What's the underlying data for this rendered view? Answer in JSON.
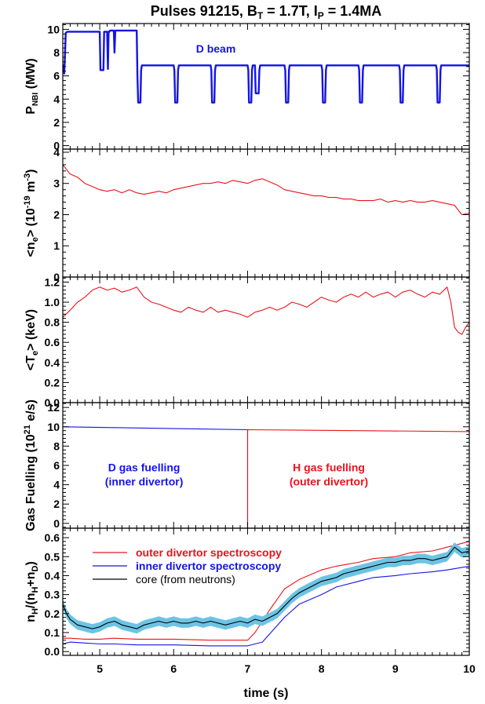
{
  "title": {
    "t1": "Pulses 91215, B",
    "t2": "T",
    "t3": " = 1.7T, I",
    "t4": "P",
    "t5": " = 1.4MA"
  },
  "xaxis": {
    "label": "time (s)",
    "ticks": [
      "5",
      "6",
      "7",
      "8",
      "9",
      "10"
    ]
  },
  "colors": {
    "red": "#e8141b",
    "blue": "#1414e6",
    "black": "#000000",
    "band": "#6cc4e4"
  },
  "chart_data": [
    {
      "type": "line",
      "ylabel": {
        "a": "P",
        "b": "NBI",
        "c": " (MW)"
      },
      "xlim": [
        4.5,
        10
      ],
      "ylim": [
        -0.3,
        10.5
      ],
      "yticks": [
        "0",
        "2",
        "4",
        "6",
        "8",
        "10"
      ],
      "annotation": "D beam",
      "series": [
        {
          "name": "D beam",
          "color": "blue",
          "x": [
            4.5,
            4.52,
            4.54,
            4.56,
            5.0,
            5.01,
            5.03,
            5.05,
            5.06,
            5.1,
            5.11,
            5.12,
            5.13,
            5.14,
            5.19,
            5.2,
            5.21,
            5.5,
            5.51,
            5.52,
            5.55,
            5.56,
            5.57,
            5.6,
            5.61,
            6.0,
            6.01,
            6.02,
            6.05,
            6.06,
            6.07,
            6.5,
            6.51,
            6.52,
            6.55,
            6.56,
            6.57,
            7.0,
            7.01,
            7.02,
            7.05,
            7.06,
            7.07,
            7.1,
            7.11,
            7.12,
            7.15,
            7.16,
            7.17,
            7.5,
            7.51,
            7.52,
            7.55,
            7.56,
            7.57,
            8.0,
            8.01,
            8.02,
            8.05,
            8.06,
            8.07,
            8.5,
            8.51,
            8.52,
            8.55,
            8.56,
            8.57,
            9.05,
            9.06,
            9.07,
            9.1,
            9.11,
            9.12,
            9.55,
            9.56,
            9.57,
            9.6,
            9.61,
            9.62,
            10.0
          ],
          "y": [
            7.0,
            6.2,
            9.7,
            9.8,
            9.8,
            6.5,
            6.5,
            6.5,
            9.8,
            9.8,
            6.6,
            9.8,
            9.8,
            9.9,
            9.9,
            8.0,
            9.9,
            9.9,
            6.0,
            3.7,
            3.7,
            6.5,
            6.9,
            6.9,
            6.9,
            6.9,
            6.5,
            3.7,
            3.7,
            6.5,
            6.9,
            6.9,
            6.5,
            3.7,
            3.7,
            6.5,
            6.9,
            6.9,
            6.5,
            3.7,
            3.7,
            6.5,
            6.9,
            6.9,
            4.5,
            4.5,
            4.5,
            6.5,
            6.9,
            6.9,
            6.5,
            3.7,
            3.7,
            6.5,
            6.9,
            6.9,
            6.5,
            3.7,
            3.7,
            6.5,
            6.9,
            6.9,
            6.5,
            3.7,
            3.7,
            6.5,
            6.9,
            6.9,
            6.5,
            3.7,
            3.7,
            6.5,
            6.9,
            6.9,
            6.5,
            3.7,
            3.7,
            6.5,
            6.9,
            6.9
          ]
        }
      ]
    },
    {
      "type": "line",
      "ylabel": {
        "a": "<n",
        "b": "e",
        "c": "> (10",
        "d": "-19",
        "e": " m",
        "f": "-3",
        "g": ")"
      },
      "xlim": [
        4.5,
        10
      ],
      "ylim": [
        0,
        4.1
      ],
      "yticks": [
        "0",
        "1",
        "2",
        "3",
        "4"
      ],
      "series": [
        {
          "name": "n_e",
          "color": "red",
          "x": [
            4.5,
            4.6,
            4.7,
            4.8,
            4.9,
            5.0,
            5.1,
            5.2,
            5.3,
            5.4,
            5.5,
            5.6,
            5.7,
            5.8,
            5.9,
            6.0,
            6.1,
            6.2,
            6.3,
            6.4,
            6.5,
            6.6,
            6.7,
            6.8,
            6.9,
            7.0,
            7.1,
            7.2,
            7.3,
            7.4,
            7.5,
            7.6,
            7.7,
            7.8,
            7.9,
            8.0,
            8.1,
            8.2,
            8.3,
            8.4,
            8.5,
            8.6,
            8.7,
            8.8,
            8.9,
            9.0,
            9.1,
            9.2,
            9.3,
            9.4,
            9.5,
            9.6,
            9.7,
            9.8,
            9.9,
            10.0
          ],
          "y": [
            3.6,
            3.3,
            3.2,
            3.0,
            2.9,
            2.8,
            2.75,
            2.8,
            2.7,
            2.8,
            2.7,
            2.65,
            2.7,
            2.75,
            2.7,
            2.8,
            2.85,
            2.9,
            2.95,
            3.0,
            3.0,
            3.05,
            3.0,
            3.1,
            3.05,
            3.0,
            3.1,
            3.15,
            3.05,
            2.95,
            2.8,
            2.75,
            2.7,
            2.65,
            2.6,
            2.6,
            2.55,
            2.55,
            2.5,
            2.5,
            2.45,
            2.45,
            2.45,
            2.5,
            2.4,
            2.45,
            2.4,
            2.45,
            2.4,
            2.4,
            2.45,
            2.4,
            2.35,
            2.3,
            2.0,
            2.05
          ]
        }
      ]
    },
    {
      "type": "line",
      "ylabel": {
        "a": "<T",
        "b": "e",
        "c": "> (keV)"
      },
      "xlim": [
        4.5,
        10
      ],
      "ylim": [
        0,
        1.25
      ],
      "yticks": [
        "0.0",
        "0.2",
        "0.4",
        "0.6",
        "0.8",
        "1.0",
        "1.2"
      ],
      "series": [
        {
          "name": "T_e",
          "color": "red",
          "x": [
            4.5,
            4.6,
            4.7,
            4.8,
            4.9,
            5.0,
            5.1,
            5.2,
            5.3,
            5.4,
            5.5,
            5.6,
            5.7,
            5.8,
            5.9,
            6.0,
            6.1,
            6.2,
            6.3,
            6.4,
            6.5,
            6.6,
            6.7,
            6.8,
            6.9,
            7.0,
            7.1,
            7.2,
            7.3,
            7.4,
            7.5,
            7.6,
            7.7,
            7.8,
            7.9,
            8.0,
            8.1,
            8.2,
            8.3,
            8.4,
            8.5,
            8.6,
            8.7,
            8.8,
            8.9,
            9.0,
            9.1,
            9.2,
            9.3,
            9.4,
            9.5,
            9.6,
            9.7,
            9.75,
            9.8,
            9.85,
            9.9,
            9.95,
            10.0
          ],
          "y": [
            0.85,
            0.92,
            1.0,
            1.05,
            1.12,
            1.15,
            1.12,
            1.14,
            1.1,
            1.12,
            1.15,
            1.05,
            1.0,
            0.98,
            0.95,
            0.92,
            0.9,
            0.95,
            0.92,
            0.9,
            0.95,
            0.9,
            0.92,
            0.9,
            0.88,
            0.85,
            0.9,
            0.92,
            0.95,
            0.92,
            0.95,
            1.0,
            0.98,
            0.95,
            1.0,
            1.05,
            1.02,
            1.0,
            1.05,
            1.08,
            1.05,
            1.1,
            1.05,
            1.08,
            1.1,
            1.05,
            1.1,
            1.12,
            1.08,
            1.05,
            1.1,
            1.08,
            1.15,
            1.0,
            0.75,
            0.7,
            0.68,
            0.75,
            0.8
          ]
        }
      ]
    },
    {
      "type": "line",
      "ylabel": {
        "a": "Gas Fuelling (10",
        "b": "21",
        "c": " e/s)"
      },
      "xlim": [
        4.5,
        10
      ],
      "ylim": [
        -0.5,
        12.5
      ],
      "yticks": [
        "0",
        "2",
        "4",
        "6",
        "8",
        "10",
        "12"
      ],
      "annotations": [
        {
          "line1": "D gas fuelling",
          "line2": "(inner divertor)",
          "color": "blue",
          "x": 5.6,
          "y": 5.4
        },
        {
          "line1": "H gas fuelling",
          "line2": "(outer divertor)",
          "color": "red",
          "x": 8.1,
          "y": 5.4
        }
      ],
      "series": [
        {
          "name": "D gas fuelling (inner divertor)",
          "color": "blue",
          "x": [
            4.5,
            7.0,
            7.0
          ],
          "y": [
            10.0,
            9.7,
            -0.5
          ]
        },
        {
          "name": "H gas fuelling (outer divertor)",
          "color": "red",
          "x": [
            7.0,
            7.0,
            10.0
          ],
          "y": [
            -0.5,
            9.7,
            9.5
          ]
        }
      ]
    },
    {
      "type": "line",
      "ylabel": {
        "a": "n",
        "b": "H",
        "c": "/(n",
        "d": "H",
        "e": "+n",
        "f": "D",
        "g": ")"
      },
      "xlim": [
        4.5,
        10
      ],
      "ylim": [
        -0.02,
        0.65
      ],
      "yticks": [
        "0.0",
        "0.1",
        "0.2",
        "0.3",
        "0.4",
        "0.5",
        "0.6"
      ],
      "legend_position": "top-left",
      "series": [
        {
          "name": "outer divertor spectroscopy",
          "color": "red",
          "x": [
            4.5,
            4.6,
            4.8,
            5.0,
            5.2,
            5.5,
            6.0,
            6.5,
            7.0,
            7.1,
            7.3,
            7.5,
            7.7,
            8.0,
            8.2,
            8.5,
            8.7,
            9.0,
            9.2,
            9.5,
            9.7,
            10.0
          ],
          "y": [
            0.07,
            0.07,
            0.065,
            0.065,
            0.07,
            0.065,
            0.065,
            0.06,
            0.06,
            0.1,
            0.22,
            0.33,
            0.38,
            0.43,
            0.45,
            0.47,
            0.49,
            0.5,
            0.52,
            0.53,
            0.55,
            0.58
          ]
        },
        {
          "name": "inner divertor spectroscopy",
          "color": "blue",
          "x": [
            4.5,
            4.6,
            4.8,
            5.0,
            5.2,
            5.5,
            6.0,
            6.5,
            7.0,
            7.2,
            7.5,
            7.7,
            8.0,
            8.2,
            8.5,
            8.7,
            9.0,
            9.2,
            9.5,
            9.7,
            10.0
          ],
          "y": [
            0.04,
            0.05,
            0.045,
            0.04,
            0.04,
            0.035,
            0.035,
            0.03,
            0.03,
            0.05,
            0.18,
            0.25,
            0.3,
            0.34,
            0.37,
            0.39,
            0.4,
            0.41,
            0.42,
            0.43,
            0.45
          ]
        },
        {
          "name": "core (from neutrons)",
          "color": "black",
          "band": 0.025,
          "x": [
            4.5,
            4.55,
            4.6,
            4.7,
            4.8,
            4.9,
            5.0,
            5.1,
            5.2,
            5.3,
            5.4,
            5.5,
            5.6,
            5.7,
            5.8,
            5.9,
            6.0,
            6.1,
            6.2,
            6.3,
            6.4,
            6.5,
            6.6,
            6.7,
            6.8,
            6.9,
            7.0,
            7.1,
            7.2,
            7.3,
            7.4,
            7.5,
            7.6,
            7.7,
            7.8,
            7.9,
            8.0,
            8.1,
            8.2,
            8.3,
            8.4,
            8.5,
            8.6,
            8.7,
            8.8,
            8.9,
            9.0,
            9.1,
            9.2,
            9.3,
            9.4,
            9.5,
            9.6,
            9.7,
            9.8,
            9.9,
            10.0
          ],
          "y": [
            0.25,
            0.2,
            0.17,
            0.14,
            0.13,
            0.12,
            0.13,
            0.15,
            0.16,
            0.14,
            0.13,
            0.12,
            0.14,
            0.15,
            0.16,
            0.15,
            0.16,
            0.15,
            0.15,
            0.16,
            0.15,
            0.16,
            0.15,
            0.14,
            0.15,
            0.16,
            0.15,
            0.17,
            0.16,
            0.18,
            0.2,
            0.24,
            0.28,
            0.31,
            0.33,
            0.35,
            0.37,
            0.38,
            0.39,
            0.41,
            0.42,
            0.43,
            0.44,
            0.45,
            0.46,
            0.47,
            0.47,
            0.48,
            0.48,
            0.49,
            0.49,
            0.48,
            0.49,
            0.5,
            0.55,
            0.52,
            0.53
          ]
        }
      ]
    }
  ]
}
